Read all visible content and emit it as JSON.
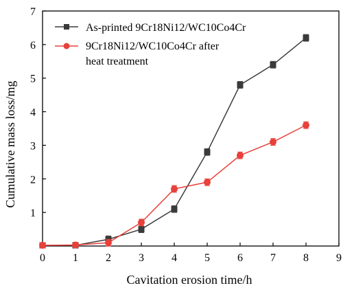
{
  "chart_data": {
    "type": "line",
    "xlabel": "Cavitation erosion time/h",
    "ylabel": "Cumulative mass loss/mg",
    "xlim": [
      0,
      9
    ],
    "ylim": [
      0,
      7
    ],
    "xticks": [
      0,
      1,
      2,
      3,
      4,
      5,
      6,
      7,
      8,
      9
    ],
    "yticks": [
      1,
      2,
      3,
      4,
      5,
      6,
      7
    ],
    "grid": false,
    "legend_position": "top-left",
    "series": [
      {
        "name": "As-printed 9Cr18Ni12/WC10Co4Cr",
        "marker": "square",
        "color": "#3a3a3a",
        "x": [
          0,
          1,
          2,
          3,
          4,
          5,
          6,
          7,
          8
        ],
        "y": [
          0.02,
          0.02,
          0.2,
          0.5,
          1.1,
          2.8,
          4.8,
          5.4,
          6.2
        ],
        "error": [
          0.08,
          0.08,
          0.1,
          0.1,
          0.1,
          0.1,
          0.1,
          0.1,
          0.1
        ]
      },
      {
        "name": "9Cr18Ni12/WC10Co4Cr after heat treatment",
        "marker": "circle",
        "color": "#e8403a",
        "x": [
          0,
          1,
          2,
          3,
          4,
          5,
          6,
          7,
          8
        ],
        "y": [
          0.02,
          0.03,
          0.1,
          0.7,
          1.7,
          1.9,
          2.7,
          3.1,
          3.6
        ],
        "error": [
          0.08,
          0.08,
          0.1,
          0.1,
          0.1,
          0.1,
          0.1,
          0.1,
          0.1
        ]
      }
    ]
  },
  "legend": {
    "line1": "As-printed 9Cr18Ni12/WC10Co4Cr",
    "line2a": "9Cr18Ni12/WC10Co4Cr after",
    "line2b": "heat treatment"
  }
}
